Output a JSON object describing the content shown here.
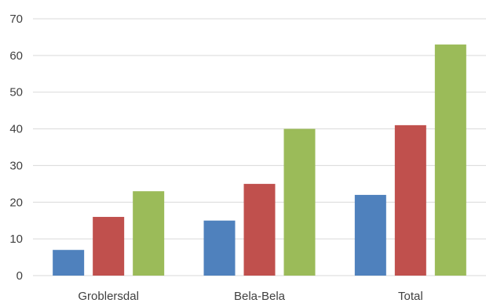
{
  "chart_data": {
    "type": "bar",
    "title": "",
    "xlabel": "",
    "ylabel": "",
    "categories": [
      "Groblersdal",
      "Bela-Bela",
      "Total"
    ],
    "series": [
      {
        "values": [
          7,
          15,
          22
        ],
        "color": "#4f81bd"
      },
      {
        "values": [
          16,
          25,
          41
        ],
        "color": "#c0504d"
      },
      {
        "values": [
          23,
          40,
          63
        ],
        "color": "#9bbb59"
      }
    ],
    "ylim": [
      0,
      70
    ],
    "yticks": [
      0,
      10,
      20,
      30,
      40,
      50,
      60,
      70
    ],
    "grid": true,
    "legend": "none"
  }
}
